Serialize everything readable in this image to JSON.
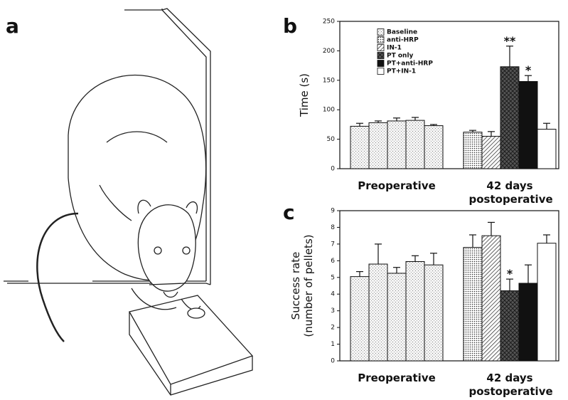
{
  "panel_a": {
    "label": "a"
  },
  "chart_data": [
    {
      "type": "bar",
      "panel_label": "b",
      "y_label": [
        "Time (s)"
      ],
      "categories": [
        "Preoperative",
        "42 days postoperative"
      ],
      "ylim": [
        0,
        250
      ],
      "yticks": [
        0,
        50,
        100,
        150,
        200,
        250
      ],
      "legend": "top-left",
      "series": [
        {
          "name": "Baseline",
          "pattern": "stipple",
          "values": [
            null,
            null
          ],
          "errors": [
            null,
            null
          ]
        },
        {
          "name": "anti-HRP",
          "pattern": "dots",
          "values": [
            72,
            62
          ],
          "errors": [
            5,
            3
          ]
        },
        {
          "name": "IN-1",
          "pattern": "hatch",
          "values": [
            78,
            55
          ],
          "errors": [
            3,
            8
          ]
        },
        {
          "name": "PT only",
          "pattern": "crosshatch",
          "values": [
            81,
            173
          ],
          "errors": [
            5,
            35
          ]
        },
        {
          "name": "PT+anti-HRP",
          "pattern": "black",
          "values": [
            82,
            148
          ],
          "errors": [
            5,
            10
          ]
        },
        {
          "name": "PT+IN-1",
          "pattern": "white",
          "values": [
            73,
            67
          ],
          "errors": [
            2,
            10
          ]
        }
      ],
      "annotations": [
        {
          "text": "**",
          "series": "PT only",
          "category": "42 days postoperative"
        },
        {
          "text": "*",
          "series": "PT+anti-HRP",
          "category": "42 days postoperative"
        }
      ]
    },
    {
      "type": "bar",
      "panel_label": "c",
      "y_label": [
        "Success rate",
        "(number of pellets)"
      ],
      "categories": [
        "Preoperative",
        "42 days postoperative"
      ],
      "ylim": [
        0,
        9
      ],
      "yticks": [
        0,
        1,
        2,
        3,
        4,
        5,
        6,
        7,
        8,
        9
      ],
      "series": [
        {
          "pattern": "stipple",
          "values": [
            null,
            null
          ],
          "errors": [
            null,
            null
          ]
        },
        {
          "pattern": "dots",
          "values": [
            5.05,
            6.8
          ],
          "errors": [
            0.3,
            0.75
          ]
        },
        {
          "pattern": "hatch",
          "values": [
            5.8,
            7.5
          ],
          "errors": [
            1.2,
            0.8
          ]
        },
        {
          "pattern": "crosshatch",
          "values": [
            5.25,
            4.2
          ],
          "errors": [
            0.35,
            0.7
          ]
        },
        {
          "pattern": "black",
          "values": [
            5.95,
            4.65
          ],
          "errors": [
            0.35,
            1.1
          ]
        },
        {
          "pattern": "white",
          "values": [
            5.75,
            7.05
          ],
          "errors": [
            0.7,
            0.5
          ]
        }
      ],
      "annotations": [
        {
          "text": "*",
          "series": 3,
          "category": 1
        }
      ]
    }
  ]
}
